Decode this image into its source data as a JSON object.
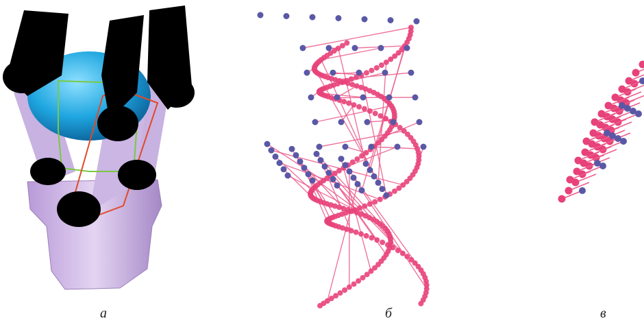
{
  "captions": {
    "a": "а",
    "b": "б",
    "c": "в"
  },
  "colors": {
    "black": "#000000",
    "apple_blue": "#1fa6e0",
    "base_lavender": "#c4a8dc",
    "grasp_box_red": "#e04a2a",
    "object_box_green": "#7ac943",
    "point_blue": "#5a58a6",
    "point_pink": "#e8427a",
    "line_pink": "#ec5c8c"
  },
  "icons": {
    "panel_a": "robot-gripper-with-apple",
    "panel_b": "point-correspondences",
    "panel_c": "point-correspondences-zoom"
  }
}
